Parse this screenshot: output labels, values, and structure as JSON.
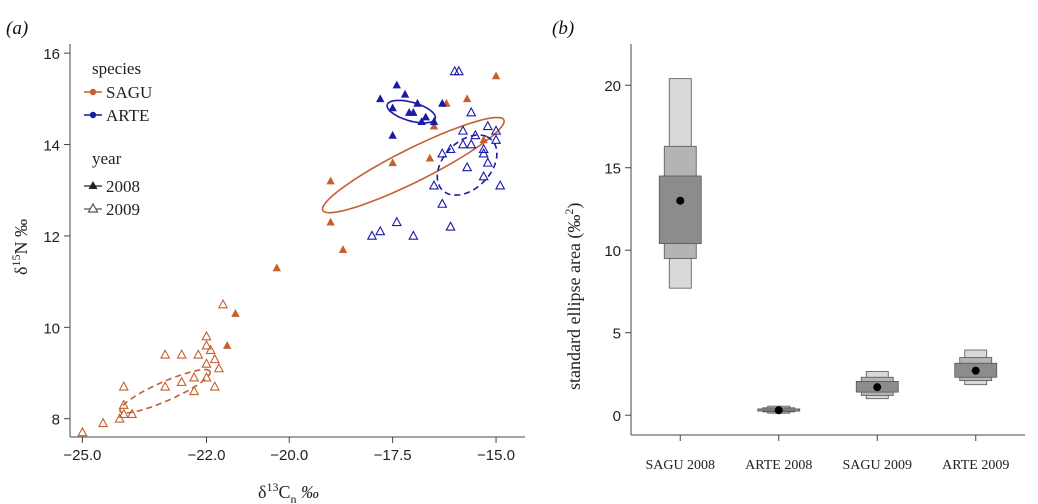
{
  "chart_data": [
    {
      "panel": "(a)",
      "type": "scatter",
      "xlabel_main": "δ",
      "xlabel_sup": "13",
      "xlabel_mid": "C",
      "xlabel_sub": "n",
      "xlabel_unit": " ‰",
      "ylabel_main": "δ",
      "ylabel_sup": "15",
      "ylabel_mid": "N ‰",
      "xlim": [
        -25.3,
        -14.3
      ],
      "ylim": [
        7.6,
        16.2
      ],
      "xticks": [
        -25.0,
        -22.0,
        -20.0,
        -17.5,
        -15.0
      ],
      "xtick_labels": [
        "−25.0",
        "−22.0",
        "−20.0",
        "−17.5",
        "−15.0"
      ],
      "yticks": [
        8,
        10,
        12,
        14,
        16
      ],
      "ytick_labels": [
        "8",
        "10",
        "12",
        "14",
        "16"
      ],
      "legend": {
        "species_title": "species",
        "species": [
          {
            "name": "SAGU",
            "color": "#c45f2f"
          },
          {
            "name": "ARTE",
            "color": "#1a1aa6"
          }
        ],
        "year_title": "year",
        "years": [
          {
            "name": "2008",
            "marker": "filled-triangle"
          },
          {
            "name": "2009",
            "marker": "open-triangle"
          }
        ]
      },
      "colors": {
        "SAGU": "#c45f2f",
        "ARTE": "#1a1aa6"
      },
      "series": [
        {
          "name": "SAGU",
          "year": "2008",
          "filled": true,
          "points": [
            [
              -15.0,
              15.5
            ],
            [
              -15.7,
              15.0
            ],
            [
              -16.2,
              14.9
            ],
            [
              -16.5,
              14.4
            ],
            [
              -15.3,
              14.1
            ],
            [
              -16.6,
              13.7
            ],
            [
              -17.5,
              13.6
            ],
            [
              -19.0,
              13.2
            ],
            [
              -19.0,
              12.3
            ],
            [
              -18.7,
              11.7
            ],
            [
              -20.3,
              11.3
            ],
            [
              -21.3,
              10.3
            ],
            [
              -21.5,
              9.6
            ]
          ]
        },
        {
          "name": "ARTE",
          "year": "2008",
          "filled": true,
          "points": [
            [
              -17.4,
              15.3
            ],
            [
              -17.8,
              15.0
            ],
            [
              -17.5,
              14.8
            ],
            [
              -17.2,
              15.1
            ],
            [
              -16.9,
              14.9
            ],
            [
              -16.7,
              14.6
            ],
            [
              -16.5,
              14.5
            ],
            [
              -16.8,
              14.5
            ],
            [
              -17.1,
              14.7
            ],
            [
              -17.5,
              14.2
            ],
            [
              -17.0,
              14.7
            ],
            [
              -16.3,
              14.9
            ]
          ]
        },
        {
          "name": "ARTE",
          "year": "2009",
          "filled": false,
          "points": [
            [
              -16.0,
              15.6
            ],
            [
              -15.9,
              15.6
            ],
            [
              -15.6,
              14.7
            ],
            [
              -15.8,
              14.3
            ],
            [
              -15.5,
              14.2
            ],
            [
              -15.2,
              14.4
            ],
            [
              -15.0,
              14.3
            ],
            [
              -15.0,
              14.1
            ],
            [
              -15.3,
              13.9
            ],
            [
              -15.8,
              14.0
            ],
            [
              -15.6,
              14.0
            ],
            [
              -15.3,
              13.8
            ],
            [
              -15.2,
              13.6
            ],
            [
              -15.7,
              13.5
            ],
            [
              -15.3,
              13.3
            ],
            [
              -14.9,
              13.1
            ],
            [
              -16.1,
              13.9
            ],
            [
              -16.3,
              13.8
            ],
            [
              -16.5,
              13.1
            ],
            [
              -16.3,
              12.7
            ],
            [
              -16.1,
              12.2
            ],
            [
              -17.0,
              12.0
            ],
            [
              -17.4,
              12.3
            ],
            [
              -17.8,
              12.1
            ],
            [
              -18.0,
              12.0
            ]
          ]
        },
        {
          "name": "SAGU",
          "year": "2009",
          "filled": false,
          "points": [
            [
              -21.6,
              10.5
            ],
            [
              -22.0,
              9.8
            ],
            [
              -22.0,
              9.6
            ],
            [
              -21.9,
              9.5
            ],
            [
              -21.8,
              9.3
            ],
            [
              -22.0,
              9.2
            ],
            [
              -22.2,
              9.4
            ],
            [
              -22.6,
              9.4
            ],
            [
              -23.0,
              9.4
            ],
            [
              -21.7,
              9.1
            ],
            [
              -22.0,
              8.9
            ],
            [
              -22.3,
              8.9
            ],
            [
              -22.6,
              8.8
            ],
            [
              -23.0,
              8.7
            ],
            [
              -21.8,
              8.7
            ],
            [
              -22.3,
              8.6
            ],
            [
              -24.0,
              8.7
            ],
            [
              -24.0,
              8.3
            ],
            [
              -24.0,
              8.1
            ],
            [
              -24.1,
              8.0
            ],
            [
              -23.8,
              8.1
            ],
            [
              -24.5,
              7.9
            ],
            [
              -25.0,
              7.7
            ]
          ]
        }
      ],
      "ellipses": [
        {
          "series": "SAGU",
          "year": "2008",
          "style": "solid",
          "cx": -17.0,
          "cy": 13.55,
          "rx": 2.6,
          "ry": 0.48,
          "angle_deg": 33
        },
        {
          "series": "ARTE",
          "year": "2008",
          "style": "solid",
          "cx": -17.05,
          "cy": 14.72,
          "rx": 0.62,
          "ry": 0.28,
          "angle_deg": -22
        },
        {
          "series": "ARTE",
          "year": "2009",
          "style": "dashed",
          "cx": -15.7,
          "cy": 13.55,
          "rx": 1.0,
          "ry": 0.62,
          "angle_deg": 62
        },
        {
          "series": "SAGU",
          "year": "2009",
          "style": "dashed",
          "cx": -23.0,
          "cy": 8.6,
          "rx": 1.25,
          "ry": 0.28,
          "angle_deg": 30
        }
      ]
    },
    {
      "panel": "(b)",
      "type": "box",
      "ylabel_main": "standard ellipse area (‰",
      "ylabel_sup": "2",
      "ylabel_end": ")",
      "ylim": [
        -1.2,
        22.5
      ],
      "yticks": [
        0,
        5,
        10,
        15,
        20
      ],
      "ytick_labels": [
        "0",
        "5",
        "10",
        "15",
        "20"
      ],
      "categories": [
        "SAGU 2008",
        "ARTE 2008",
        "SAGU 2009",
        "ARTE 2009"
      ],
      "mode": [
        13.0,
        0.3,
        1.7,
        2.7
      ],
      "ci50": [
        [
          10.4,
          14.5
        ],
        [
          0.25,
          0.38
        ],
        [
          1.4,
          2.05
        ],
        [
          2.3,
          3.15
        ]
      ],
      "ci75": [
        [
          9.5,
          16.3
        ],
        [
          0.2,
          0.45
        ],
        [
          1.2,
          2.3
        ],
        [
          2.1,
          3.5
        ]
      ],
      "ci95": [
        [
          7.7,
          20.4
        ],
        [
          0.12,
          0.55
        ],
        [
          1.0,
          2.65
        ],
        [
          1.85,
          3.95
        ]
      ],
      "colors": {
        "ci95": "#d9d9d9",
        "ci75": "#b4b4b4",
        "ci50": "#8c8c8c",
        "mode": "#000000"
      }
    }
  ]
}
